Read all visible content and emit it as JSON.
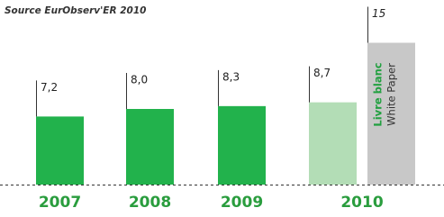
{
  "chart_data": {
    "type": "bar",
    "title": "Source EurObserv'ER 2010",
    "categories": [
      "2007",
      "2008",
      "2009",
      "2010",
      null
    ],
    "values": [
      7.2,
      8.0,
      8.3,
      8.7,
      15
    ],
    "value_labels": [
      "7,2",
      "8,0",
      "8,3",
      "8,7",
      "15"
    ],
    "colors": [
      "#22b24c",
      "#22b24c",
      "#22b24c",
      "#b3ddb6",
      "#c8c8c8"
    ],
    "annotations": [
      {
        "text": "Livre blanc",
        "color": "#22a040"
      },
      {
        "text": "White Paper",
        "color": "#333333"
      }
    ]
  }
}
